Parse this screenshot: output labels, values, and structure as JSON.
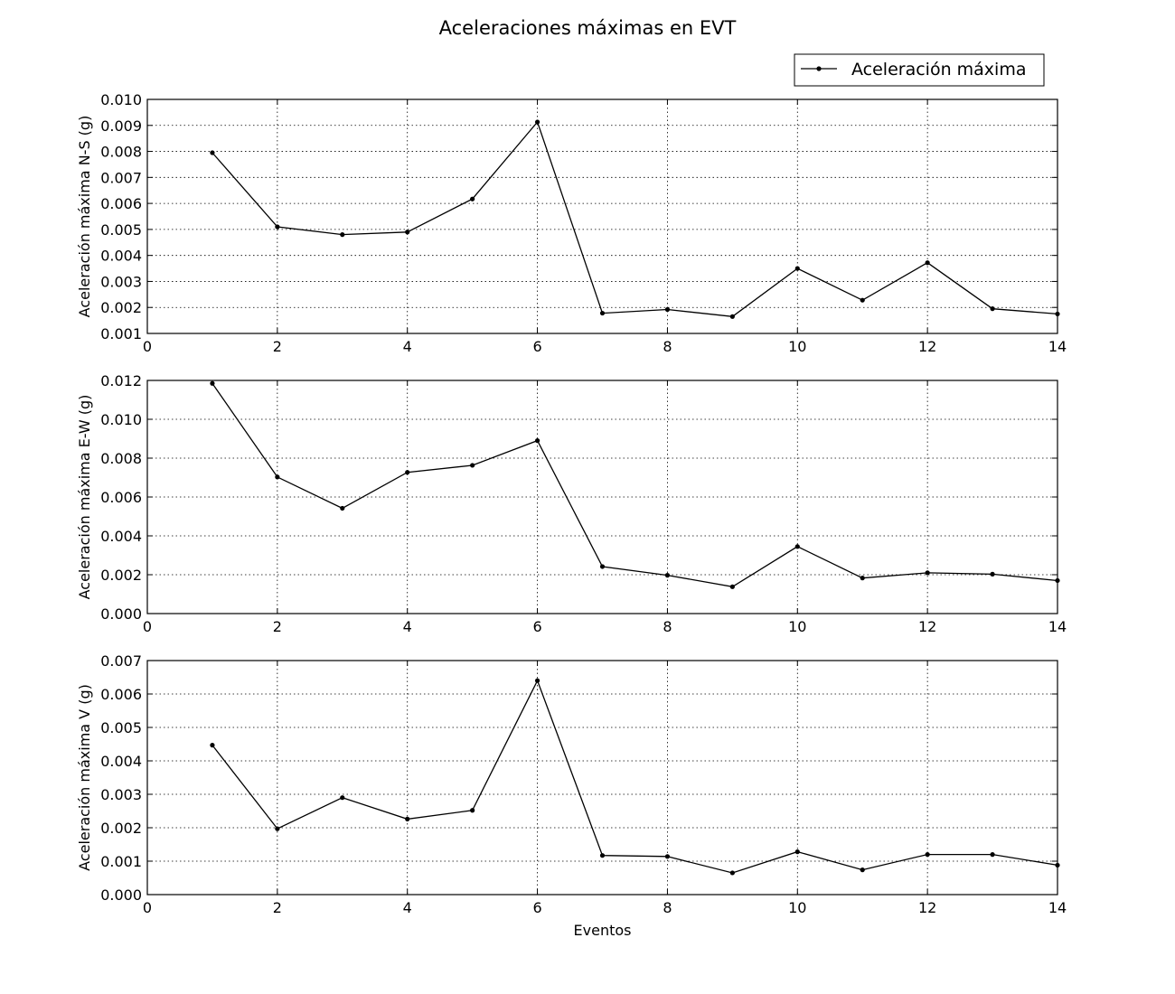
{
  "figure": {
    "title": "Aceleraciones máximas en EVT",
    "legend_label": "Aceleración máxima",
    "legend_position": "top-right"
  },
  "chart_data": [
    {
      "type": "line",
      "title": "",
      "xlabel": "",
      "ylabel": "Aceleración máxima N-S (g)",
      "xlim": [
        0,
        14
      ],
      "ylim": [
        0.001,
        0.01
      ],
      "xticks": [
        0,
        2,
        4,
        6,
        8,
        10,
        12,
        14
      ],
      "yticks": [
        0.001,
        0.002,
        0.003,
        0.004,
        0.005,
        0.006,
        0.007,
        0.008,
        0.009,
        0.01
      ],
      "ytick_decimals": 3,
      "grid": true,
      "series": [
        {
          "name": "Aceleración máxima",
          "x": [
            1,
            2,
            3,
            4,
            5,
            6,
            7,
            8,
            9,
            10,
            11,
            12,
            13,
            14
          ],
          "y": [
            0.00795,
            0.0051,
            0.0048,
            0.0049,
            0.00617,
            0.00913,
            0.00178,
            0.00192,
            0.00165,
            0.0035,
            0.00228,
            0.00372,
            0.00195,
            0.00175
          ]
        }
      ]
    },
    {
      "type": "line",
      "title": "",
      "xlabel": "",
      "ylabel": "Aceleración máxima E-W (g)",
      "xlim": [
        0,
        14
      ],
      "ylim": [
        0.0,
        0.012
      ],
      "xticks": [
        0,
        2,
        4,
        6,
        8,
        10,
        12,
        14
      ],
      "yticks": [
        0.0,
        0.002,
        0.004,
        0.006,
        0.008,
        0.01,
        0.012
      ],
      "ytick_decimals": 3,
      "grid": true,
      "series": [
        {
          "name": "Aceleración máxima",
          "x": [
            1,
            2,
            3,
            4,
            5,
            6,
            7,
            8,
            9,
            10,
            11,
            12,
            13,
            14
          ],
          "y": [
            0.01185,
            0.00703,
            0.00542,
            0.00727,
            0.00763,
            0.0089,
            0.00242,
            0.00197,
            0.00138,
            0.00345,
            0.00183,
            0.0021,
            0.00203,
            0.0017
          ]
        }
      ]
    },
    {
      "type": "line",
      "title": "",
      "xlabel": "Eventos",
      "ylabel": "Aceleración máxima V (g)",
      "xlim": [
        0,
        14
      ],
      "ylim": [
        0.0,
        0.007
      ],
      "xticks": [
        0,
        2,
        4,
        6,
        8,
        10,
        12,
        14
      ],
      "yticks": [
        0.0,
        0.001,
        0.002,
        0.003,
        0.004,
        0.005,
        0.006,
        0.007
      ],
      "ytick_decimals": 3,
      "grid": true,
      "series": [
        {
          "name": "Aceleración máxima",
          "x": [
            1,
            2,
            3,
            4,
            5,
            6,
            7,
            8,
            9,
            10,
            11,
            12,
            13,
            14
          ],
          "y": [
            0.00447,
            0.00197,
            0.0029,
            0.00226,
            0.00252,
            0.0064,
            0.00117,
            0.00114,
            0.00065,
            0.00128,
            0.00074,
            0.0012,
            0.0012,
            0.00088
          ]
        }
      ]
    }
  ]
}
